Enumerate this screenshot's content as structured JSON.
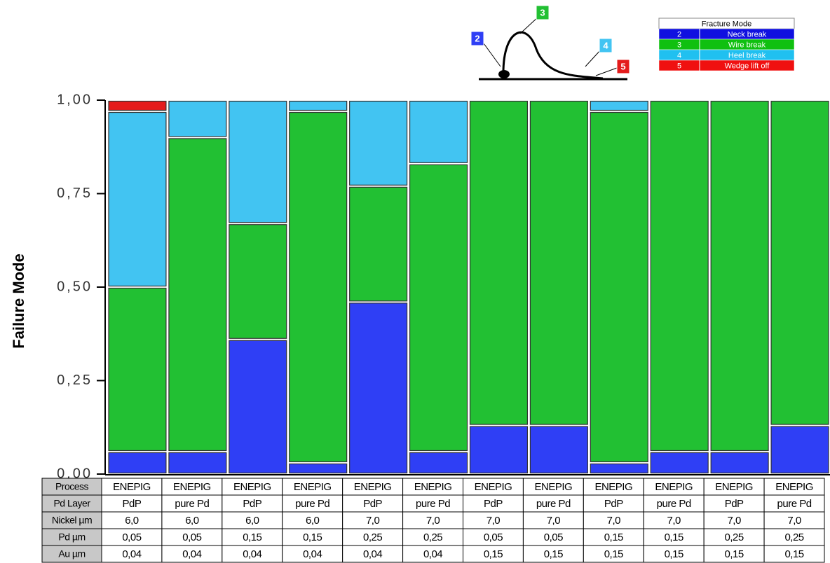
{
  "chart_data": {
    "type": "stacked_bar",
    "y_label": "Failure Mode",
    "legend_title": "Fracture Mode",
    "ylim": [
      0,
      1
    ],
    "yticks": [
      {
        "value": 0,
        "label": "0,00"
      },
      {
        "value": 0.25,
        "label": "0,25"
      },
      {
        "value": 0.5,
        "label": "0,50"
      },
      {
        "value": 0.75,
        "label": "0,75"
      },
      {
        "value": 1,
        "label": "1,00"
      }
    ],
    "series": [
      {
        "code": "2",
        "name": "Neck break",
        "color": "#2f3ff5",
        "legend_color": "#1010e0",
        "values": [
          0.06,
          0.06,
          0.36,
          0.03,
          0.46,
          0.06,
          0.13,
          0.13,
          0.03,
          0.06,
          0.06,
          0.13
        ]
      },
      {
        "code": "3",
        "name": "Wire break",
        "color": "#22c033",
        "legend_color": "#10c010",
        "values": [
          0.44,
          0.84,
          0.31,
          0.94,
          0.31,
          0.77,
          0.87,
          0.87,
          0.94,
          0.94,
          0.94,
          0.87
        ]
      },
      {
        "code": "4",
        "name": "Heel break",
        "color": "#42c4f2",
        "legend_color": "#20c0f0",
        "values": [
          0.47,
          0.1,
          0.33,
          0.03,
          0.23,
          0.17,
          0,
          0,
          0.03,
          0,
          0,
          0
        ]
      },
      {
        "code": "5",
        "name": "Wedge lift off",
        "color": "#e41c1c",
        "legend_color": "#f01010",
        "values": [
          0.03,
          0,
          0,
          0,
          0,
          0,
          0,
          0,
          0,
          0,
          0,
          0
        ]
      }
    ],
    "table": [
      {
        "label": "Process",
        "values": [
          "ENEPIG",
          "ENEPIG",
          "ENEPIG",
          "ENEPIG",
          "ENEPIG",
          "ENEPIG",
          "ENEPIG",
          "ENEPIG",
          "ENEPIG",
          "ENEPIG",
          "ENEPIG",
          "ENEPIG"
        ]
      },
      {
        "label": "Pd Layer",
        "values": [
          "PdP",
          "pure Pd",
          "PdP",
          "pure Pd",
          "PdP",
          "pure Pd",
          "PdP",
          "pure Pd",
          "PdP",
          "pure Pd",
          "PdP",
          "pure Pd"
        ]
      },
      {
        "label": "Nickel µm",
        "values": [
          "6,0",
          "6,0",
          "6,0",
          "6,0",
          "7,0",
          "7,0",
          "7,0",
          "7,0",
          "7,0",
          "7,0",
          "7,0",
          "7,0"
        ]
      },
      {
        "label": "Pd µm",
        "values": [
          "0,05",
          "0,05",
          "0,15",
          "0,15",
          "0,25",
          "0,25",
          "0,05",
          "0,05",
          "0,15",
          "0,15",
          "0,25",
          "0,25"
        ]
      },
      {
        "label": "Au µm",
        "values": [
          "0,04",
          "0,04",
          "0,04",
          "0,04",
          "0,04",
          "0,04",
          "0,15",
          "0,15",
          "0,15",
          "0,15",
          "0,15",
          "0,15"
        ]
      }
    ]
  }
}
